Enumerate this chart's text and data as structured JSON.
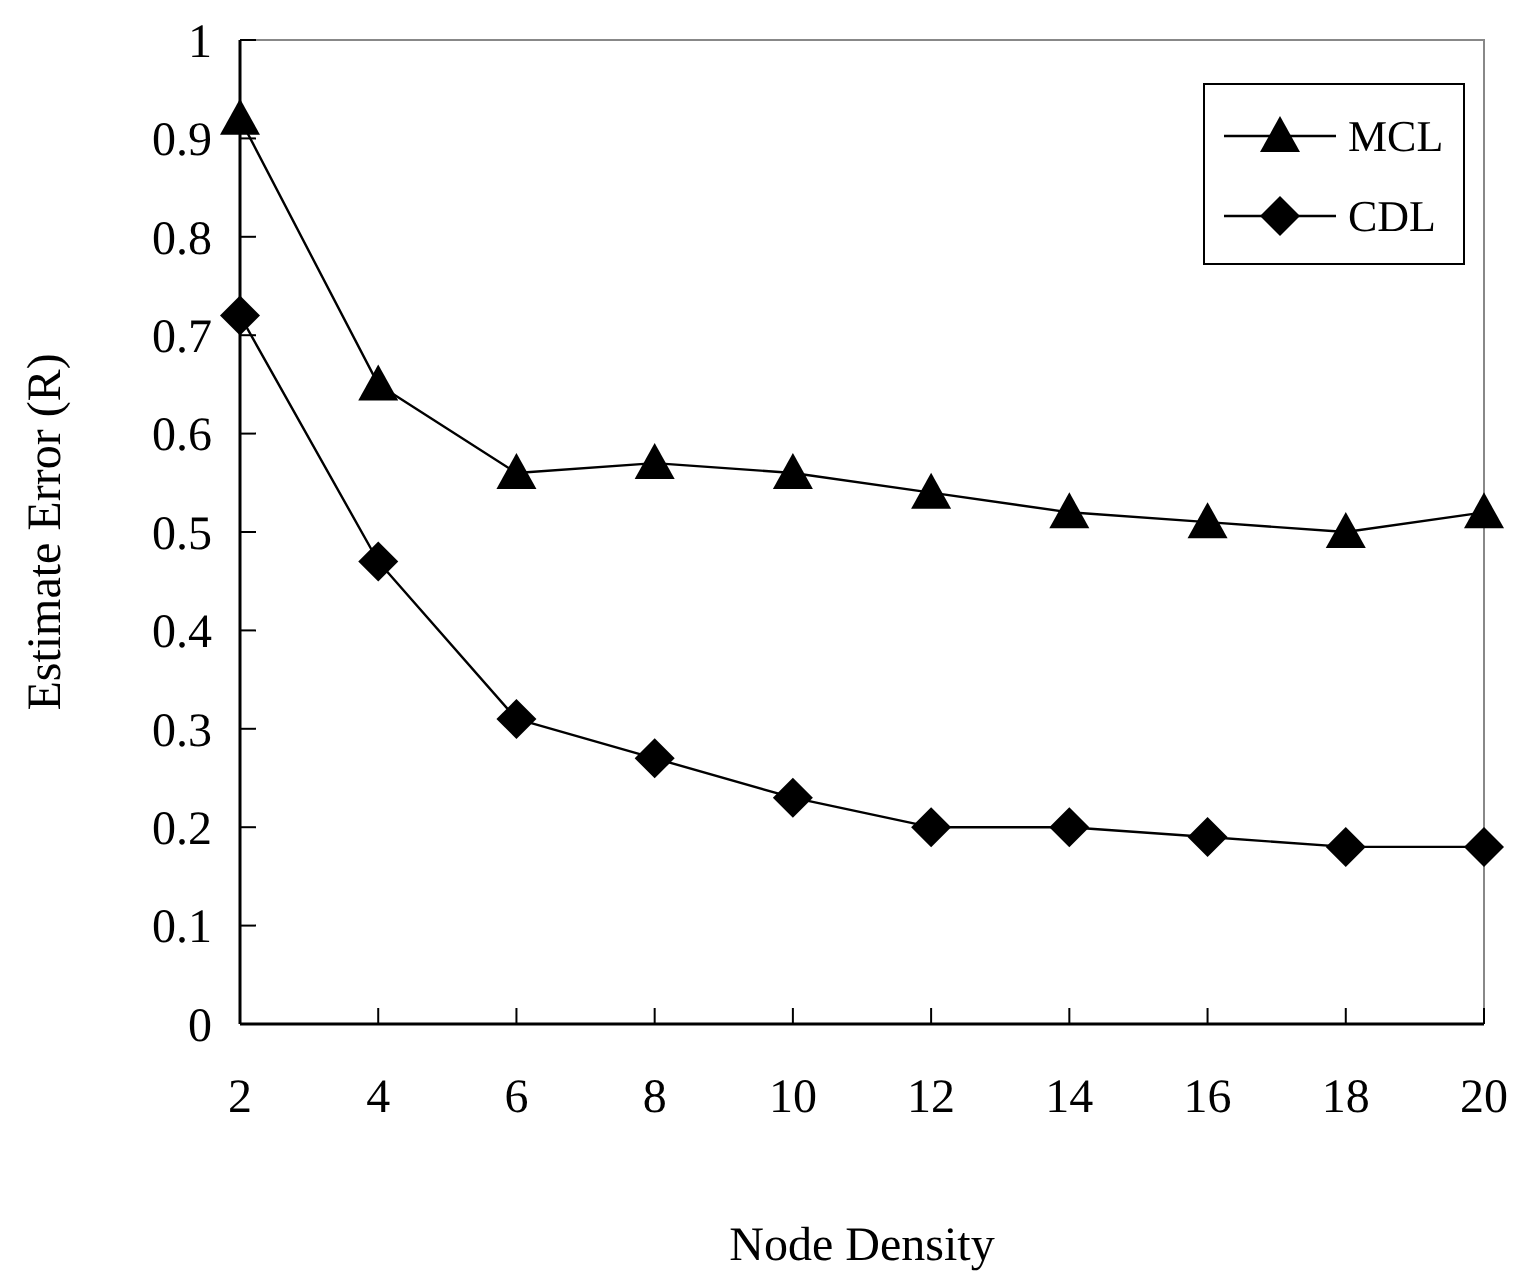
{
  "chart_data": {
    "type": "line",
    "xlabel": "Node Density",
    "ylabel": "Estimate Error (R)",
    "x": [
      2,
      4,
      6,
      8,
      10,
      12,
      14,
      16,
      18,
      20
    ],
    "xlim": [
      2,
      20
    ],
    "xticks": [
      2,
      4,
      6,
      8,
      10,
      12,
      14,
      16,
      18,
      20
    ],
    "ylim": [
      0,
      1
    ],
    "yticks": [
      0,
      0.1,
      0.2,
      0.3,
      0.4,
      0.5,
      0.6,
      0.7,
      0.8,
      0.9,
      1
    ],
    "grid": false,
    "legend": "top right",
    "series": [
      {
        "name": "MCL",
        "color": "#000000",
        "marker": "triangle",
        "values": [
          0.92,
          0.65,
          0.56,
          0.57,
          0.56,
          0.54,
          0.52,
          0.51,
          0.5,
          0.52
        ]
      },
      {
        "name": "CDL",
        "color": "#000000",
        "marker": "diamond",
        "values": [
          0.72,
          0.47,
          0.31,
          0.27,
          0.23,
          0.2,
          0.2,
          0.19,
          0.18,
          0.18
        ]
      }
    ]
  }
}
